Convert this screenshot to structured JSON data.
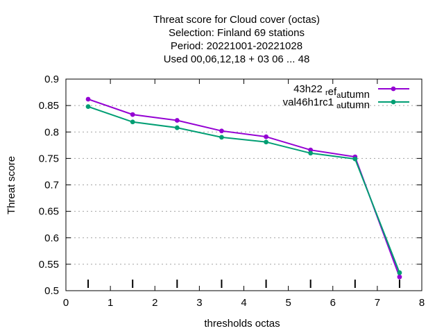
{
  "title_lines": [
    "Threat score  for Cloud cover (octas)",
    "Selection: Finland     69 stations",
    "Period: 20221001-20221028",
    "Used  00,06,12,18  + 03 06 ... 48"
  ],
  "chart_data": {
    "type": "line",
    "xlabel": "thresholds octas",
    "ylabel": "Threat score",
    "xlim": [
      0,
      8
    ],
    "ylim": [
      0.5,
      0.9
    ],
    "x_ticks": [
      "0",
      "1",
      "2",
      "3",
      "4",
      "5",
      "6",
      "7",
      "8"
    ],
    "y_ticks": [
      "0.5",
      "0.55",
      "0.6",
      "0.65",
      "0.7",
      "0.75",
      "0.8",
      "0.85",
      "0.9"
    ],
    "grid": "y-dashed",
    "legend_position": "top-right",
    "x": [
      0.5,
      1.5,
      2.5,
      3.5,
      4.5,
      5.5,
      6.5,
      7.5
    ],
    "series": [
      {
        "name": "43h22",
        "name_sub1": "r",
        "name_mid": "ef",
        "name_sub2": "a",
        "name_tail": "utumn",
        "color": "#9400d3",
        "values": [
          0.862,
          0.833,
          0.822,
          0.802,
          0.791,
          0.766,
          0.753,
          0.526
        ]
      },
      {
        "name": "val46h1rc1",
        "name_sub2": "a",
        "name_tail": "utumn",
        "color": "#009e73",
        "values": [
          0.848,
          0.819,
          0.808,
          0.79,
          0.781,
          0.76,
          0.749,
          0.534
        ]
      }
    ],
    "sample_marks_x": [
      0.5,
      1.5,
      2.5,
      3.5,
      4.5,
      5.5,
      6.5,
      7.5
    ]
  }
}
